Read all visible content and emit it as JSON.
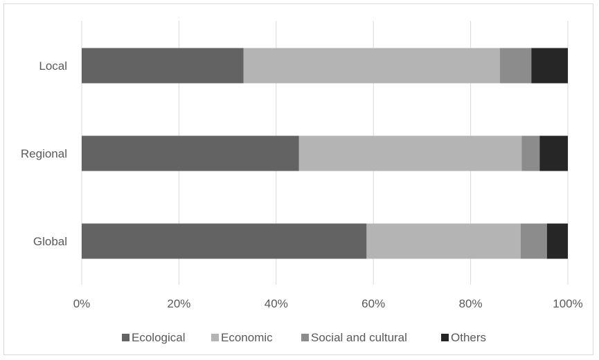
{
  "chart_data": {
    "type": "bar",
    "orientation": "horizontal",
    "stacked": "percent",
    "categories": [
      "Local",
      "Regional",
      "Global"
    ],
    "series": [
      {
        "name": "Ecological",
        "values": [
          33.3,
          44.7,
          58.6
        ],
        "color": "#636363"
      },
      {
        "name": "Economic",
        "values": [
          52.7,
          45.8,
          31.7
        ],
        "color": "#b4b4b4"
      },
      {
        "name": "Social and cultural",
        "values": [
          6.5,
          3.7,
          5.4
        ],
        "color": "#8c8c8c"
      },
      {
        "name": "Others",
        "values": [
          7.5,
          5.8,
          4.3
        ],
        "color": "#262626"
      }
    ],
    "x_ticks": [
      "0%",
      "20%",
      "40%",
      "60%",
      "80%",
      "100%"
    ],
    "xlim": [
      0,
      100
    ],
    "grid": "vertical",
    "legend_position": "bottom",
    "title": "",
    "xlabel": "",
    "ylabel": ""
  }
}
